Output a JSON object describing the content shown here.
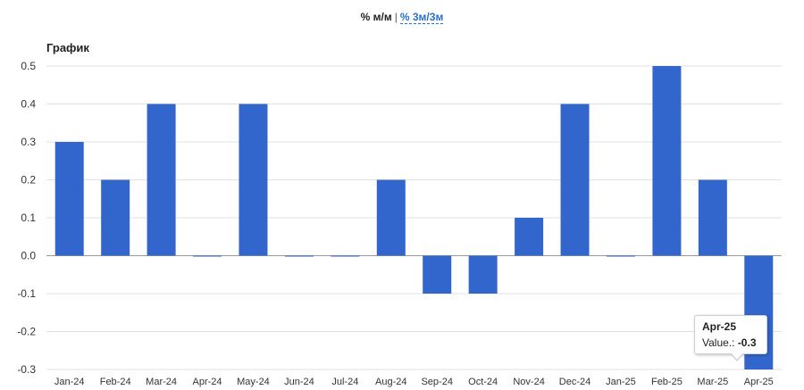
{
  "toggle": {
    "active_label": "% м/м",
    "separator": "|",
    "link_label": "% 3м/3м"
  },
  "chart_data": {
    "type": "bar",
    "title": "График",
    "categories": [
      "Jan-24",
      "Feb-24",
      "Mar-24",
      "Apr-24",
      "May-24",
      "Jun-24",
      "Jul-24",
      "Aug-24",
      "Sep-24",
      "Oct-24",
      "Nov-24",
      "Dec-24",
      "Jan-25",
      "Feb-25",
      "Mar-25",
      "Apr-25"
    ],
    "values": [
      0.3,
      0.2,
      0.4,
      0.0,
      0.4,
      0.0,
      0.0,
      0.2,
      -0.1,
      -0.1,
      0.1,
      0.4,
      0.0,
      0.5,
      0.2,
      -0.3
    ],
    "ylim": [
      -0.3,
      0.5
    ],
    "yticks": [
      "0.5",
      "0.4",
      "0.3",
      "0.2",
      "0.1",
      "0.0",
      "-0.1",
      "-0.2",
      "-0.3"
    ],
    "grid": true,
    "bar_color": "#3366cc"
  },
  "tooltip": {
    "title": "Apr-25",
    "value_label": "Value.:",
    "value": "-0.3"
  }
}
